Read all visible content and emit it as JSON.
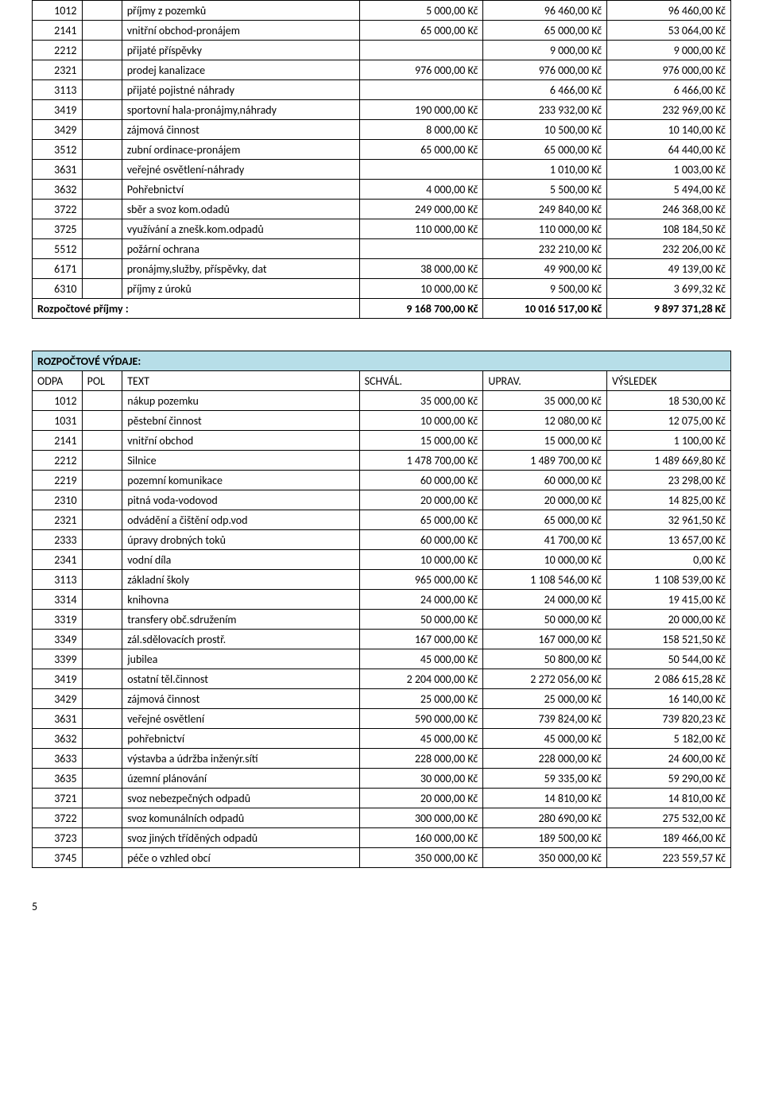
{
  "income_rows": [
    {
      "odpa": "1012",
      "text": "příjmy z pozemků",
      "c1": "5 000,00 Kč",
      "c2": "96 460,00 Kč",
      "c3": "96 460,00 Kč"
    },
    {
      "odpa": "2141",
      "text": "vnitřní obchod-pronájem",
      "c1": "65 000,00 Kč",
      "c2": "65 000,00 Kč",
      "c3": "53 064,00 Kč"
    },
    {
      "odpa": "2212",
      "text": "přijaté příspěvky",
      "c1": "",
      "c2": "9 000,00 Kč",
      "c3": "9 000,00 Kč"
    },
    {
      "odpa": "2321",
      "text": "prodej kanalizace",
      "c1": "976 000,00 Kč",
      "c2": "976 000,00 Kč",
      "c3": "976 000,00 Kč"
    },
    {
      "odpa": "3113",
      "text": "přijaté pojistné náhrady",
      "c1": "",
      "c2": "6 466,00 Kč",
      "c3": "6 466,00 Kč"
    },
    {
      "odpa": "3419",
      "text": "sportovní hala-pronájmy,náhrady",
      "c1": "190 000,00 Kč",
      "c2": "233 932,00 Kč",
      "c3": "232 969,00 Kč"
    },
    {
      "odpa": "3429",
      "text": "zájmová činnost",
      "c1": "8 000,00 Kč",
      "c2": "10 500,00 Kč",
      "c3": "10 140,00 Kč"
    },
    {
      "odpa": "3512",
      "text": "zubní ordinace-pronájem",
      "c1": "65 000,00 Kč",
      "c2": "65 000,00 Kč",
      "c3": "64 440,00 Kč"
    },
    {
      "odpa": "3631",
      "text": "veřejné osvětlení-náhrady",
      "c1": "",
      "c2": "1 010,00 Kč",
      "c3": "1 003,00 Kč"
    },
    {
      "odpa": "3632",
      "text": "Pohřebnictví",
      "c1": "4 000,00 Kč",
      "c2": "5 500,00 Kč",
      "c3": "5 494,00 Kč"
    },
    {
      "odpa": "3722",
      "text": "sběr a svoz kom.odadů",
      "c1": "249 000,00 Kč",
      "c2": "249 840,00 Kč",
      "c3": "246 368,00 Kč"
    },
    {
      "odpa": "3725",
      "text": "využívání a znešk.kom.odpadů",
      "c1": "110 000,00 Kč",
      "c2": "110 000,00 Kč",
      "c3": "108 184,50 Kč"
    },
    {
      "odpa": "5512",
      "text": "požární ochrana",
      "c1": "",
      "c2": "232 210,00 Kč",
      "c3": "232 206,00 Kč"
    },
    {
      "odpa": "6171",
      "text": "pronájmy,služby, příspěvky, dat",
      "c1": "38 000,00 Kč",
      "c2": "49 900,00 Kč",
      "c3": "49 139,00 Kč"
    },
    {
      "odpa": "6310",
      "text": "příjmy z úroků",
      "c1": "10 000,00 Kč",
      "c2": "9 500,00 Kč",
      "c3": "3 699,32 Kč"
    }
  ],
  "income_total": {
    "label": "Rozpočtové příjmy :",
    "c1": "9 168 700,00 Kč",
    "c2": "10 016 517,00 Kč",
    "c3": "9 897 371,28 Kč"
  },
  "expense_header": "ROZPOČTOVÉ VÝDAJE:",
  "expense_cols": {
    "odpa": "ODPA",
    "pol": "POL",
    "text": "TEXT",
    "c1": "SCHVÁL.",
    "c2": "UPRAV.",
    "c3": "VÝSLEDEK"
  },
  "expense_rows": [
    {
      "odpa": "1012",
      "text": "nákup pozemku",
      "c1": "35 000,00 Kč",
      "c2": "35 000,00 Kč",
      "c3": "18 530,00 Kč"
    },
    {
      "odpa": "1031",
      "text": "pěstební činnost",
      "c1": "10 000,00 Kč",
      "c2": "12 080,00 Kč",
      "c3": "12 075,00 Kč"
    },
    {
      "odpa": "2141",
      "text": "vnitřní obchod",
      "c1": "15 000,00 Kč",
      "c2": "15 000,00 Kč",
      "c3": "1 100,00 Kč"
    },
    {
      "odpa": "2212",
      "text": "Silnice",
      "c1": "1 478 700,00 Kč",
      "c2": "1 489 700,00 Kč",
      "c3": "1 489 669,80 Kč"
    },
    {
      "odpa": "2219",
      "text": "pozemní komunikace",
      "c1": "60 000,00 Kč",
      "c2": "60 000,00 Kč",
      "c3": "23 298,00 Kč"
    },
    {
      "odpa": "2310",
      "text": "pitná voda-vodovod",
      "c1": "20 000,00 Kč",
      "c2": "20 000,00 Kč",
      "c3": "14 825,00 Kč"
    },
    {
      "odpa": "2321",
      "text": "odvádění a čištění odp.vod",
      "c1": "65 000,00 Kč",
      "c2": "65 000,00 Kč",
      "c3": "32 961,50 Kč"
    },
    {
      "odpa": "2333",
      "text": "úpravy drobných toků",
      "c1": "60 000,00 Kč",
      "c2": "41 700,00 Kč",
      "c3": "13 657,00 Kč"
    },
    {
      "odpa": "2341",
      "text": "vodní díla",
      "c1": "10 000,00 Kč",
      "c2": "10 000,00 Kč",
      "c3": "0,00 Kč"
    },
    {
      "odpa": "3113",
      "text": "základní školy",
      "c1": "965 000,00 Kč",
      "c2": "1 108 546,00 Kč",
      "c3": "1 108 539,00 Kč"
    },
    {
      "odpa": "3314",
      "text": "knihovna",
      "c1": "24 000,00 Kč",
      "c2": "24 000,00 Kč",
      "c3": "19 415,00 Kč"
    },
    {
      "odpa": "3319",
      "text": "transfery obč.sdružením",
      "c1": "50 000,00 Kč",
      "c2": "50 000,00 Kč",
      "c3": "20 000,00 Kč"
    },
    {
      "odpa": "3349",
      "text": "zál.sdělovacích prostř.",
      "c1": "167 000,00 Kč",
      "c2": "167 000,00 Kč",
      "c3": "158 521,50 Kč"
    },
    {
      "odpa": "3399",
      "text": " jubilea",
      "c1": "45 000,00 Kč",
      "c2": "50 800,00 Kč",
      "c3": "50 544,00 Kč"
    },
    {
      "odpa": "3419",
      "text": "ostatní těl.činnost",
      "c1": "2 204 000,00 Kč",
      "c2": "2 272 056,00 Kč",
      "c3": "2 086 615,28 Kč"
    },
    {
      "odpa": "3429",
      "text": "zájmová činnost",
      "c1": "25 000,00 Kč",
      "c2": "25 000,00 Kč",
      "c3": "16 140,00 Kč"
    },
    {
      "odpa": "3631",
      "text": "veřejné osvětlení",
      "c1": "590 000,00 Kč",
      "c2": "739 824,00 Kč",
      "c3": "739 820,23 Kč"
    },
    {
      "odpa": "3632",
      "text": "pohřebnictví",
      "c1": "45 000,00 Kč",
      "c2": "45 000,00 Kč",
      "c3": "5 182,00 Kč"
    },
    {
      "odpa": "3633",
      "text": "výstavba a údržba inženýr.sítí",
      "c1": "228 000,00 Kč",
      "c2": "228 000,00 Kč",
      "c3": "24 600,00 Kč"
    },
    {
      "odpa": "3635",
      "text": "územní plánování",
      "c1": "30 000,00 Kč",
      "c2": "59 335,00 Kč",
      "c3": "59 290,00 Kč"
    },
    {
      "odpa": "3721",
      "text": "svoz  nebezpečných odpadů",
      "c1": "20 000,00 Kč",
      "c2": "14 810,00 Kč",
      "c3": "14 810,00 Kč"
    },
    {
      "odpa": "3722",
      "text": "svoz komunálních odpadů",
      "c1": "300 000,00 Kč",
      "c2": "280 690,00 Kč",
      "c3": "275 532,00 Kč"
    },
    {
      "odpa": "3723",
      "text": "svoz jiných tříděných odpadů",
      "c1": "160 000,00 Kč",
      "c2": "189 500,00 Kč",
      "c3": "189 466,00 Kč"
    },
    {
      "odpa": "3745",
      "text": "péče o vzhled obcí",
      "c1": "350 000,00 Kč",
      "c2": "350 000,00 Kč",
      "c3": "223 559,57 Kč"
    }
  ],
  "page_number": "5"
}
